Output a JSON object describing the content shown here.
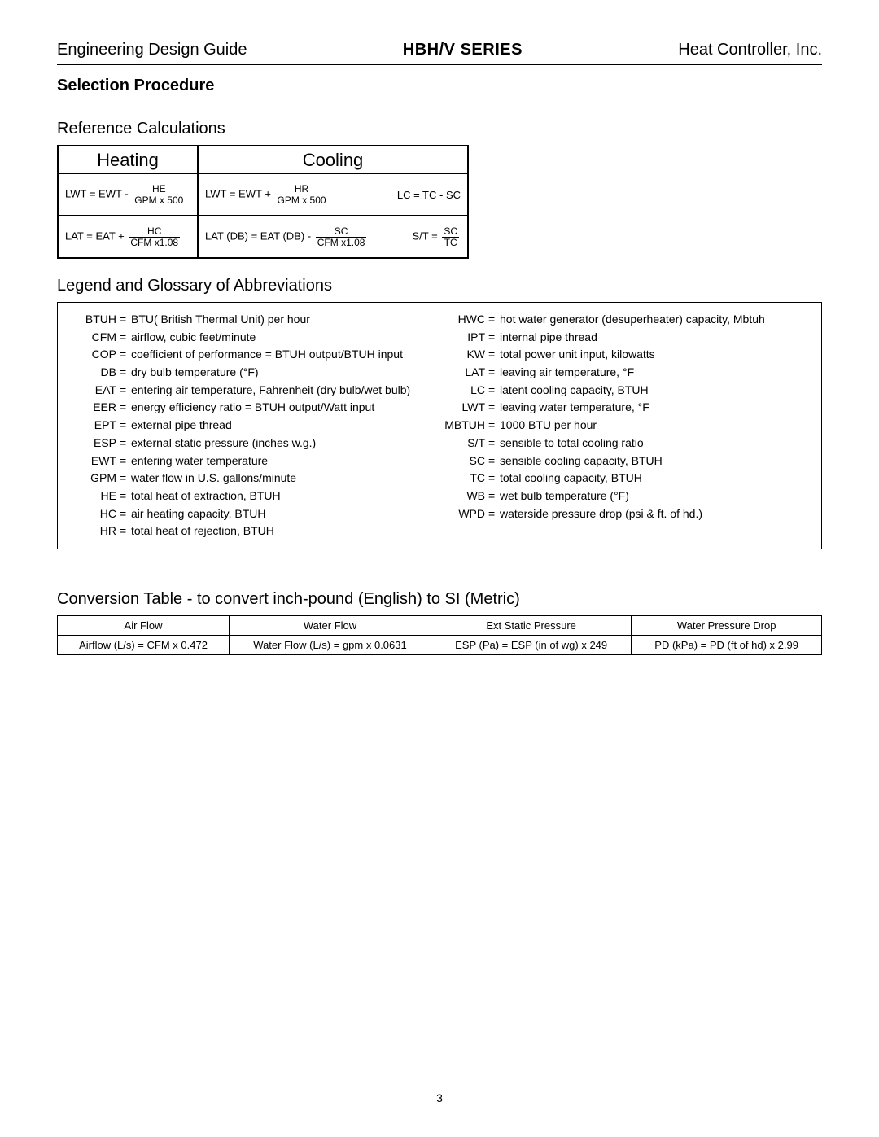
{
  "header": {
    "left": "Engineering Design Guide",
    "mid": "HBH/V SERIES",
    "right": "Heat Controller, Inc."
  },
  "section_title": "Selection Procedure",
  "ref_calc": {
    "heading": "Reference Calculations",
    "heat_title": "Heating",
    "cool_title": "Cooling",
    "heat_r1_lhs": "LWT = EWT -",
    "heat_r1_num": "HE",
    "heat_r1_den": "GPM x 500",
    "heat_r2_lhs": "LAT = EAT +",
    "heat_r2_num": "HC",
    "heat_r2_den": "CFM x1.08",
    "cool_r1_lhs": "LWT = EWT +",
    "cool_r1_num": "HR",
    "cool_r1_den": "GPM x 500",
    "cool_r1_rhs": "LC = TC - SC",
    "cool_r2_lhs": "LAT (DB) = EAT (DB)  -",
    "cool_r2_num": "SC",
    "cool_r2_den": "CFM x1.08",
    "cool_r2_rhs_lhs": "S/T =",
    "cool_r2_rhs_num": "SC",
    "cool_r2_rhs_den": "TC"
  },
  "legend": {
    "heading": "Legend and Glossary of Abbreviations",
    "left": [
      {
        "a": "BTUH",
        "d": "BTU( British Thermal Unit) per hour"
      },
      {
        "a": "CFM",
        "d": "airflow, cubic feet/minute"
      },
      {
        "a": "COP",
        "d": "coefficient of performance = BTUH output/BTUH input"
      },
      {
        "a": "DB",
        "d": "dry bulb temperature (°F)"
      },
      {
        "a": "EAT",
        "d": "entering air temperature, Fahrenheit (dry bulb/wet bulb)"
      },
      {
        "a": "EER",
        "d": "energy efficiency ratio = BTUH output/Watt input"
      },
      {
        "a": "EPT",
        "d": "external pipe thread"
      },
      {
        "a": "ESP",
        "d": "external static pressure (inches w.g.)"
      },
      {
        "a": "EWT",
        "d": "entering water temperature"
      },
      {
        "a": "GPM",
        "d": "water flow in U.S. gallons/minute"
      },
      {
        "a": "HE",
        "d": "total heat of extraction, BTUH"
      },
      {
        "a": "HC",
        "d": "air heating capacity, BTUH"
      },
      {
        "a": "HR",
        "d": "total heat of rejection, BTUH"
      }
    ],
    "right": [
      {
        "a": "HWC",
        "d": "hot water generator (desuperheater) capacity, Mbtuh"
      },
      {
        "a": "IPT",
        "d": "internal pipe thread"
      },
      {
        "a": "KW",
        "d": "total power unit input, kilowatts"
      },
      {
        "a": "LAT",
        "d": "leaving air temperature, °F"
      },
      {
        "a": "LC",
        "d": "latent cooling capacity, BTUH"
      },
      {
        "a": "LWT",
        "d": "leaving water temperature, °F"
      },
      {
        "a": "MBTUH",
        "d": "1000 BTU per hour"
      },
      {
        "a": "S/T",
        "d": "sensible to total cooling ratio"
      },
      {
        "a": "SC",
        "d": "sensible cooling capacity, BTUH"
      },
      {
        "a": "TC",
        "d": "total cooling capacity, BTUH"
      },
      {
        "a": "WB",
        "d": "wet bulb temperature (°F)"
      },
      {
        "a": "WPD",
        "d": "waterside pressure drop (psi & ft. of hd.)"
      }
    ]
  },
  "conv": {
    "heading": "Conversion Table - to convert inch-pound (English) to SI (Metric)",
    "headers": [
      "Air Flow",
      "Water Flow",
      "Ext Static Pressure",
      "Water Pressure Drop"
    ],
    "row": [
      "Airflow (L/s) = CFM x 0.472",
      "Water Flow (L/s) = gpm x 0.0631",
      "ESP (Pa) = ESP (in of wg) x 249",
      "PD (kPa) = PD (ft of hd) x 2.99"
    ]
  },
  "page_number": "3"
}
